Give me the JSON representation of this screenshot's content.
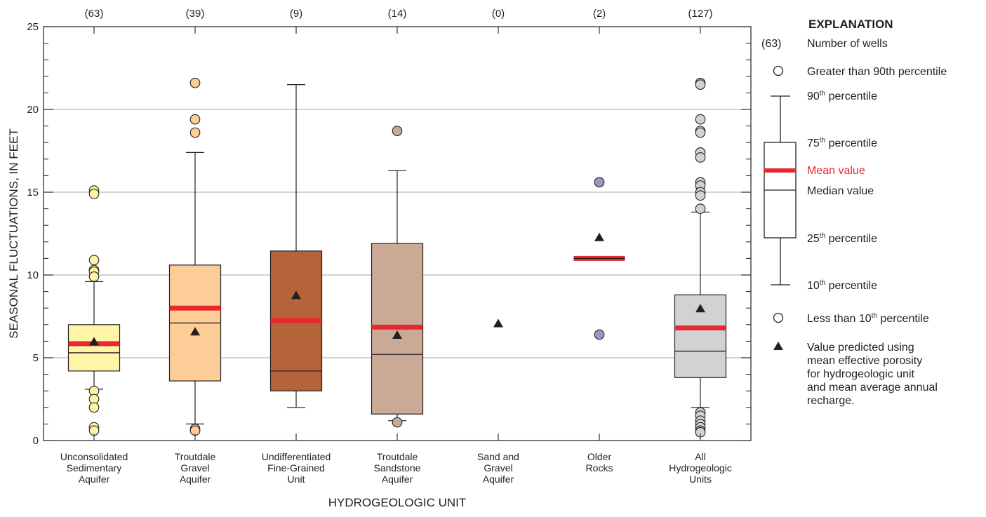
{
  "chart_data": {
    "type": "boxplot",
    "ylabel": "SEASONAL FLUCTUATIONS, IN FEET",
    "xlabel": "HYDROGEOLOGIC UNIT",
    "ylim": [
      0,
      25
    ],
    "yticks": [
      0,
      5,
      10,
      15,
      20,
      25
    ],
    "ytick_labels": [
      "0",
      "5",
      "10",
      "15",
      "20",
      "25"
    ],
    "grid": true,
    "units": [
      {
        "lines": [
          "Unconsolidated",
          "Sedimentary",
          "Aquifer"
        ],
        "count": "(63)",
        "fill": "#fff5a6",
        "outlier_fill": "#fff5a6",
        "p10": 3.1,
        "q1": 4.2,
        "median": 5.3,
        "q3": 7.0,
        "p90": 9.6,
        "mean": 5.85,
        "predicted": 6.0,
        "outliers": [
          15.1,
          14.9,
          10.9,
          10.3,
          10.2,
          9.9,
          3.0,
          2.5,
          2.0,
          0.8,
          0.6
        ]
      },
      {
        "lines": [
          "Troutdale",
          "Gravel",
          "Aquifer"
        ],
        "count": "(39)",
        "fill": "#fdcd98",
        "outlier_fill": "#fdcd98",
        "p10": 1.0,
        "q1": 3.6,
        "median": 7.1,
        "q3": 10.6,
        "p90": 17.4,
        "mean": 8.0,
        "predicted": 6.6,
        "outliers": [
          21.6,
          19.4,
          18.6,
          0.7,
          0.6
        ]
      },
      {
        "lines": [
          "Undifferentiated",
          "Fine-Grained",
          "Unit"
        ],
        "count": "(9)",
        "fill": "#b5633a",
        "outlier_fill": "#b5633a",
        "p10": 2.0,
        "q1": 3.0,
        "median": 4.2,
        "q3": 11.45,
        "p90": 21.5,
        "mean": 7.25,
        "predicted": 8.8,
        "outliers": []
      },
      {
        "lines": [
          "Troutdale",
          "Sandstone",
          "Aquifer"
        ],
        "count": "(14)",
        "fill": "#caa995",
        "outlier_fill": "#caa995",
        "p10": 1.2,
        "q1": 1.6,
        "median": 5.2,
        "q3": 11.9,
        "p90": 16.3,
        "mean": 6.85,
        "predicted": 6.4,
        "outliers": [
          18.7,
          1.1
        ]
      },
      {
        "lines": [
          "Sand and",
          "Gravel",
          "Aquifer"
        ],
        "count": "(0)",
        "fill": "none",
        "outlier_fill": "none",
        "p10": null,
        "q1": null,
        "median": null,
        "q3": null,
        "p90": null,
        "mean": null,
        "predicted": 7.1,
        "outliers": []
      },
      {
        "lines": [
          "Older",
          "Rocks"
        ],
        "count": "(2)",
        "fill": "none",
        "outlier_fill": "#a193c5",
        "p10": null,
        "q1": null,
        "median": 11.0,
        "q3": null,
        "p90": null,
        "mean": 11.0,
        "predicted": 12.3,
        "outliers": [
          15.6,
          6.4
        ]
      },
      {
        "lines": [
          "All",
          "Hydrogeologic",
          "Units"
        ],
        "count": "(127)",
        "fill": "#d1d2d4",
        "outlier_fill": "#d1d2d4",
        "p10": 2.0,
        "q1": 3.8,
        "median": 5.4,
        "q3": 8.8,
        "p90": 13.8,
        "mean": 6.8,
        "predicted": 8.0,
        "outliers": [
          21.6,
          21.5,
          19.4,
          18.7,
          18.6,
          17.4,
          17.1,
          15.6,
          15.4,
          15.0,
          14.8,
          14.0,
          1.7,
          1.5,
          1.2,
          1.0,
          0.8,
          0.6,
          0.5
        ]
      }
    ],
    "colors": {
      "mean": "#e8282f",
      "line": "#231f20",
      "grid": "#b7b8ba"
    }
  },
  "legend": {
    "title": "EXPLANATION",
    "count_sample": "(63)",
    "count_label": "Number of wells",
    "greater_label": "Greater than 90th percentile",
    "p90_num": "90",
    "p75_num": "75",
    "p25_num": "25",
    "p10_num": "10",
    "ord": "th",
    "percentile_word": " percentile",
    "mean_label": "Mean value",
    "median_label": "Median value",
    "less_prefix": "Less than 10",
    "less_suffix": " percentile",
    "predicted_lines": [
      "Value predicted using",
      "mean effective porosity",
      "for hydrogeologic unit",
      "and mean average annual",
      "recharge."
    ]
  }
}
